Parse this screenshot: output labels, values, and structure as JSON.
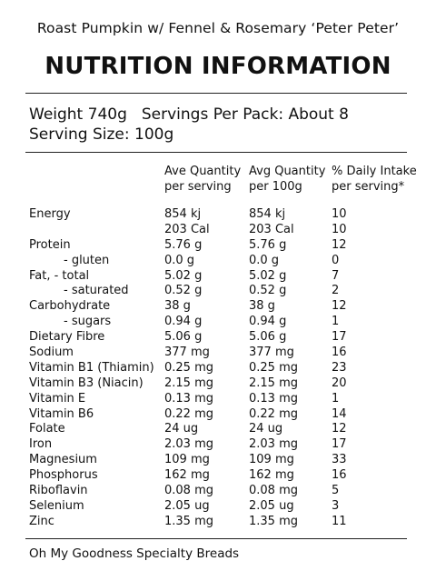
{
  "product_name": "Roast Pumpkin w/ Fennel & Rosemary ‘Peter Peter’",
  "heading": "NUTRITION INFORMATION",
  "weight": "Weight 740g",
  "servings_per_pack": "Servings Per Pack: About 8",
  "serving_size": "Serving Size: 100g",
  "columns": {
    "per_serving": [
      "Ave Quantity",
      "per serving"
    ],
    "per_100g": [
      "Avg Quantity",
      "per 100g"
    ],
    "daily_intake": [
      "% Daily Intake",
      "per serving*"
    ]
  },
  "rows": [
    {
      "label": "Energy",
      "per_serving": "854 kj",
      "per_100g": "854 kj",
      "daily": "10"
    },
    {
      "label": "",
      "per_serving": "203 Cal",
      "per_100g": "203 Cal",
      "daily": "10"
    },
    {
      "label": "Protein",
      "per_serving": "5.76 g",
      "per_100g": "5.76 g",
      "daily": "12"
    },
    {
      "label": "- gluten",
      "sub": true,
      "per_serving": "0.0 g",
      "per_100g": "0.0 g",
      "daily": "0"
    },
    {
      "label": "Fat,   - total",
      "per_serving": "5.02 g",
      "per_100g": "5.02 g",
      "daily": "7"
    },
    {
      "label": "- saturated",
      "sub": true,
      "per_serving": "0.52 g",
      "per_100g": "0.52 g",
      "daily": "2"
    },
    {
      "label": "Carbohydrate",
      "per_serving": "38 g",
      "per_100g": "38 g",
      "daily": "12"
    },
    {
      "label": "- sugars",
      "sub": true,
      "per_serving": "0.94 g",
      "per_100g": "0.94 g",
      "daily": "1"
    },
    {
      "label": "Dietary Fibre",
      "per_serving": "5.06 g",
      "per_100g": "5.06 g",
      "daily": "17"
    },
    {
      "label": "Sodium",
      "per_serving": "377 mg",
      "per_100g": "377 mg",
      "daily": "16"
    },
    {
      "label": "Vitamin B1 (Thiamin)",
      "per_serving": "0.25 mg",
      "per_100g": "0.25 mg",
      "daily": "23"
    },
    {
      "label": "Vitamin B3 (Niacin)",
      "per_serving": "2.15 mg",
      "per_100g": "2.15 mg",
      "daily": "20"
    },
    {
      "label": "Vitamin E",
      "per_serving": "0.13 mg",
      "per_100g": "0.13 mg",
      "daily": "1"
    },
    {
      "label": "Vitamin B6",
      "per_serving": "0.22 mg",
      "per_100g": "0.22 mg",
      "daily": "14"
    },
    {
      "label": "Folate",
      "per_serving": "24 ug",
      "per_100g": "24 ug",
      "daily": "12"
    },
    {
      "label": "Iron",
      "per_serving": "2.03 mg",
      "per_100g": "2.03 mg",
      "daily": "17"
    },
    {
      "label": "Magnesium",
      "per_serving": "109 mg",
      "per_100g": "109 mg",
      "daily": "33"
    },
    {
      "label": "Phosphorus",
      "per_serving": "162 mg",
      "per_100g": "162 mg",
      "daily": "16"
    },
    {
      "label": "Riboflavin",
      "per_serving": "0.08 mg",
      "per_100g": "0.08 mg",
      "daily": "5"
    },
    {
      "label": "Selenium",
      "per_serving": "2.05 ug",
      "per_100g": "2.05 ug",
      "daily": "3"
    },
    {
      "label": "Zinc",
      "per_serving": "1.35 mg",
      "per_100g": "1.35 mg",
      "daily": "11"
    }
  ],
  "footer": "Oh My Goodness Specialty Breads"
}
